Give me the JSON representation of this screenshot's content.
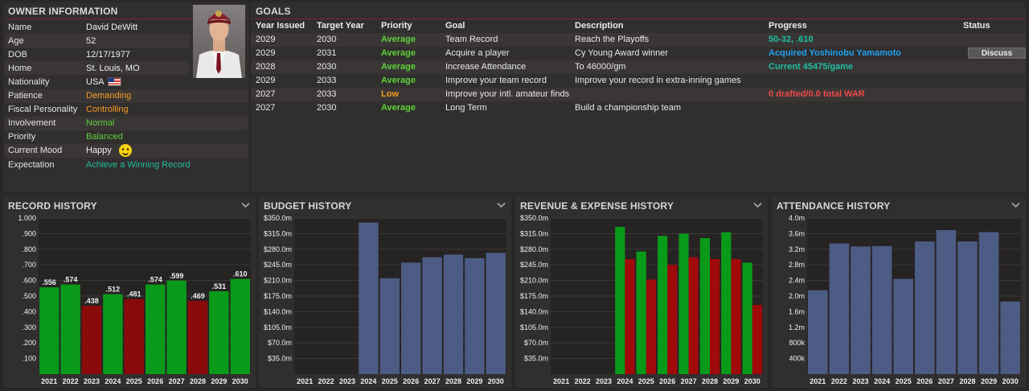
{
  "owner": {
    "title": "OWNER INFORMATION",
    "rows": [
      {
        "label": "Name",
        "value": "David DeWitt",
        "color": ""
      },
      {
        "label": "Age",
        "value": "52",
        "color": ""
      },
      {
        "label": "DOB",
        "value": "12/17/1977",
        "color": ""
      },
      {
        "label": "Home",
        "value": "St. Louis, MO",
        "color": ""
      },
      {
        "label": "Nationality",
        "value": "USA",
        "color": ""
      },
      {
        "label": "Patience",
        "value": "Demanding",
        "color": "orange"
      },
      {
        "label": "Fiscal Personality",
        "value": "Controlling",
        "color": "orange"
      },
      {
        "label": "Involvement",
        "value": "Normal",
        "color": "green"
      },
      {
        "label": "Priority",
        "value": "Balanced",
        "color": "green"
      },
      {
        "label": "Current Mood",
        "value": "Happy",
        "color": ""
      },
      {
        "label": "Expectation",
        "value": "Achieve a Winning Record",
        "color": "teal"
      }
    ],
    "flag_icon": "usa-flag-icon",
    "mood_icon": "smiley-icon"
  },
  "goals": {
    "title": "GOALS",
    "headers": [
      "Year Issued",
      "Target Year",
      "Priority",
      "Goal",
      "Description",
      "Progress",
      "Status"
    ],
    "rows": [
      {
        "issued": "2029",
        "target": "2030",
        "priority": "Average",
        "priority_color": "green",
        "goal": "Team Record",
        "description": "Reach the Playoffs",
        "progress": "50-32, .610",
        "progress_color": "teal",
        "status": ""
      },
      {
        "issued": "2029",
        "target": "2031",
        "priority": "Average",
        "priority_color": "green",
        "goal": "Acquire a player",
        "description": "Cy Young Award winner",
        "progress": "Acquired Yoshinobu Yamamoto",
        "progress_color": "blue",
        "status": "Discuss"
      },
      {
        "issued": "2028",
        "target": "2030",
        "priority": "Average",
        "priority_color": "green",
        "goal": "Increase Attendance",
        "description": "To 46000/gm",
        "progress": "Current 45475/game",
        "progress_color": "teal",
        "status": ""
      },
      {
        "issued": "2029",
        "target": "2033",
        "priority": "Average",
        "priority_color": "green",
        "goal": "Improve your team record",
        "description": "Improve your record in extra-inning games",
        "progress": "",
        "progress_color": "",
        "status": ""
      },
      {
        "issued": "2027",
        "target": "2033",
        "priority": "Low",
        "priority_color": "orange",
        "goal": "Improve your intl. amateur finds",
        "description": "",
        "progress": "0 drafted/0.0 total WAR",
        "progress_color": "red",
        "status": ""
      },
      {
        "issued": "2027",
        "target": "2030",
        "priority": "Average",
        "priority_color": "green",
        "goal": "Long Term",
        "description": "Build a championship team",
        "progress": "",
        "progress_color": "",
        "status": ""
      }
    ]
  },
  "colors": {
    "win": "#0a9a1a",
    "loss": "#8a0a0a",
    "neutral": "#4c5c84",
    "revenue": "#0a9a1a",
    "expense": "#a00a0a"
  },
  "chart_data": [
    {
      "type": "bar",
      "title": "RECORD HISTORY",
      "categories": [
        "2021",
        "2022",
        "2023",
        "2024",
        "2025",
        "2026",
        "2027",
        "2028",
        "2029",
        "2030"
      ],
      "values": [
        0.556,
        0.574,
        0.438,
        0.512,
        0.481,
        0.574,
        0.599,
        0.469,
        0.531,
        0.61
      ],
      "value_labels": [
        ".556",
        ".574",
        ".438",
        ".512",
        ".481",
        ".574",
        ".599",
        ".469",
        ".531",
        ".610"
      ],
      "yticks": [
        "1.000",
        ".900",
        ".800",
        ".700",
        ".600",
        ".500",
        ".400",
        ".300",
        ".200",
        ".100"
      ],
      "ylim": [
        0,
        1
      ],
      "grid": true
    },
    {
      "type": "bar",
      "title": "BUDGET HISTORY",
      "categories": [
        "2021",
        "2022",
        "2023",
        "2024",
        "2025",
        "2026",
        "2027",
        "2028",
        "2029",
        "2030"
      ],
      "values": [
        0,
        0,
        0,
        340,
        215,
        250,
        262,
        268,
        260,
        272
      ],
      "yticks": [
        "$350.0m",
        "$315.0m",
        "$280.0m",
        "$245.0m",
        "$210.0m",
        "$175.0m",
        "$140.0m",
        "$105.0m",
        "$70.0m",
        "$35.0m"
      ],
      "ylim": [
        0,
        350
      ],
      "grid": true
    },
    {
      "type": "bar",
      "title": "REVENUE & EXPENSE HISTORY",
      "categories": [
        "2021",
        "2022",
        "2023",
        "2024",
        "2025",
        "2026",
        "2027",
        "2028",
        "2029",
        "2030"
      ],
      "series": [
        {
          "values": [
            0,
            0,
            0,
            330,
            275,
            310,
            315,
            305,
            318,
            250
          ]
        },
        {
          "values": [
            0,
            0,
            0,
            258,
            212,
            245,
            262,
            258,
            258,
            155
          ]
        }
      ],
      "yticks": [
        "$350.0m",
        "$315.0m",
        "$280.0m",
        "$245.0m",
        "$210.0m",
        "$175.0m",
        "$140.0m",
        "$105.0m",
        "$70.0m",
        "$35.0m"
      ],
      "ylim": [
        0,
        350
      ],
      "grid": true
    },
    {
      "type": "bar",
      "title": "ATTENDANCE HISTORY",
      "categories": [
        "2021",
        "2022",
        "2023",
        "2024",
        "2025",
        "2026",
        "2027",
        "2028",
        "2029",
        "2030"
      ],
      "values": [
        2150000,
        3350000,
        3270000,
        3280000,
        2440000,
        3400000,
        3690000,
        3400000,
        3640000,
        1860000
      ],
      "yticks": [
        "4.0m",
        "3.6m",
        "3.2m",
        "2.8m",
        "2.4m",
        "2.0m",
        "1.6m",
        "1.2m",
        "800k",
        "400k"
      ],
      "ylim": [
        0,
        4000000
      ],
      "grid": true
    }
  ]
}
